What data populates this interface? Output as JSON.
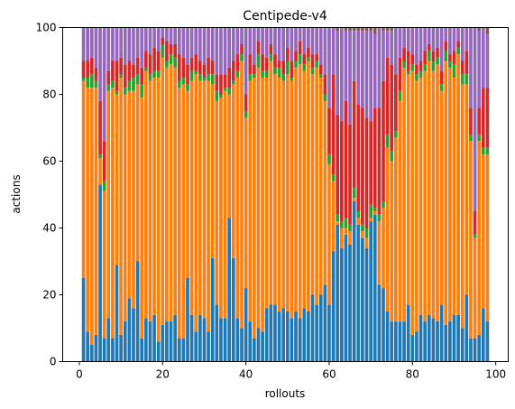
{
  "chart_data": {
    "type": "bar",
    "stacked": true,
    "title": "Centipede-v4",
    "xlabel": "rollouts",
    "ylabel": "actions",
    "xlim": [
      -4,
      103
    ],
    "ylim": [
      0,
      100
    ],
    "xticks": [
      0,
      20,
      40,
      60,
      80,
      100
    ],
    "yticks": [
      0,
      20,
      40,
      60,
      80,
      100
    ],
    "grid": false,
    "x": [
      1,
      2,
      3,
      4,
      5,
      6,
      7,
      8,
      9,
      10,
      11,
      12,
      13,
      14,
      15,
      16,
      17,
      18,
      19,
      20,
      21,
      22,
      23,
      24,
      25,
      26,
      27,
      28,
      29,
      30,
      31,
      32,
      33,
      34,
      35,
      36,
      37,
      38,
      39,
      40,
      41,
      42,
      43,
      44,
      45,
      46,
      47,
      48,
      49,
      50,
      51,
      52,
      53,
      54,
      55,
      56,
      57,
      58,
      59,
      60,
      61,
      62,
      63,
      64,
      65,
      66,
      67,
      68,
      69,
      70,
      71,
      72,
      73,
      74,
      75,
      76,
      77,
      78,
      79,
      80,
      81,
      82,
      83,
      84,
      85,
      86,
      87,
      88,
      89,
      90,
      91,
      92,
      93,
      94,
      95,
      96,
      97,
      98
    ],
    "series": [
      {
        "color": "#1f77b4",
        "values": [
          25,
          9,
          5,
          8,
          53,
          7,
          13,
          7,
          29,
          8,
          12,
          19,
          16,
          30,
          7,
          13,
          12,
          14,
          6,
          11,
          12,
          12,
          14,
          7,
          7,
          25,
          14,
          9,
          14,
          13,
          9,
          31,
          17,
          13,
          13,
          43,
          31,
          13,
          10,
          22,
          12,
          7,
          10,
          9,
          16,
          17,
          17,
          15,
          16,
          15,
          13,
          15,
          13,
          16,
          15,
          20,
          17,
          20,
          23,
          17,
          33,
          41,
          34,
          38,
          35,
          48,
          41,
          37,
          34,
          42,
          44,
          23,
          22,
          15,
          12,
          12,
          12,
          12,
          17,
          8,
          9,
          14,
          12,
          14,
          13,
          12,
          17,
          11,
          12,
          14,
          14,
          10,
          20,
          7,
          7,
          8,
          16,
          12
        ]
      },
      {
        "color": "#ff7f0e",
        "values": [
          59,
          73,
          77,
          74,
          8,
          44,
          68,
          75,
          51,
          77,
          68,
          62,
          65,
          53,
          72,
          74,
          72,
          71,
          79,
          80,
          76,
          77,
          74,
          75,
          76,
          56,
          70,
          77,
          70,
          71,
          75,
          52,
          61,
          66,
          68,
          37,
          52,
          72,
          80,
          51,
          72,
          78,
          78,
          76,
          69,
          73,
          69,
          70,
          68,
          71,
          71,
          73,
          76,
          71,
          75,
          66,
          71,
          65,
          55,
          42,
          21,
          1,
          6,
          2,
          4,
          1,
          2,
          2,
          3,
          1,
          1,
          19,
          24,
          49,
          48,
          55,
          66,
          76,
          69,
          79,
          75,
          71,
          75,
          76,
          74,
          77,
          64,
          79,
          76,
          71,
          78,
          73,
          63,
          59,
          30,
          58,
          46,
          50
        ]
      },
      {
        "color": "#2ca02c",
        "values": [
          1,
          3,
          4,
          2,
          1,
          3,
          2,
          2,
          1,
          1,
          2,
          3,
          4,
          3,
          4,
          1,
          2,
          2,
          2,
          4,
          2,
          3,
          3,
          2,
          2,
          2,
          3,
          1,
          2,
          1,
          2,
          3,
          3,
          1,
          1,
          2,
          1,
          2,
          2,
          2,
          2,
          1,
          4,
          2,
          2,
          2,
          2,
          3,
          2,
          4,
          1,
          2,
          3,
          2,
          1,
          2,
          2,
          1,
          2,
          3,
          2,
          2,
          2,
          3,
          2,
          3,
          2,
          2,
          3,
          4,
          1,
          2,
          2,
          4,
          3,
          2,
          3,
          2,
          1,
          2,
          2,
          2,
          2,
          3,
          3,
          2,
          2,
          3,
          2,
          4,
          2,
          3,
          3,
          2,
          1,
          2,
          2,
          2
        ]
      },
      {
        "color": "#d62728",
        "values": [
          5,
          5,
          5,
          4,
          16,
          12,
          4,
          6,
          9,
          5,
          7,
          6,
          4,
          5,
          5,
          5,
          6,
          7,
          6,
          2,
          6,
          3,
          4,
          8,
          6,
          6,
          4,
          5,
          4,
          4,
          5,
          4,
          5,
          6,
          4,
          6,
          6,
          5,
          3,
          5,
          6,
          3,
          4,
          5,
          4,
          3,
          4,
          2,
          4,
          4,
          5,
          3,
          4,
          3,
          3,
          4,
          2,
          3,
          6,
          14,
          30,
          30,
          30,
          35,
          30,
          32,
          32,
          35,
          33,
          25,
          30,
          32,
          36,
          23,
          26,
          17,
          10,
          4,
          6,
          3,
          3,
          3,
          4,
          2,
          3,
          3,
          4,
          3,
          2,
          4,
          2,
          4,
          7,
          8,
          7,
          8,
          18,
          18
        ]
      },
      {
        "color": "#9467bd",
        "values": [
          10,
          10,
          9,
          12,
          22,
          34,
          13,
          10,
          10,
          9,
          11,
          10,
          11,
          9,
          12,
          7,
          8,
          6,
          7,
          3,
          4,
          5,
          5,
          8,
          9,
          11,
          9,
          8,
          10,
          11,
          9,
          10,
          14,
          14,
          14,
          12,
          10,
          8,
          5,
          20,
          8,
          11,
          4,
          8,
          9,
          5,
          8,
          10,
          10,
          6,
          10,
          7,
          4,
          8,
          6,
          8,
          8,
          11,
          14,
          24,
          14,
          25,
          28,
          21,
          28,
          15,
          22,
          23,
          26,
          27,
          22,
          24,
          15,
          8,
          10,
          14,
          9,
          6,
          7,
          8,
          11,
          10,
          7,
          5,
          7,
          6,
          13,
          4,
          8,
          7,
          4,
          10,
          7,
          24,
          55,
          23,
          18,
          16
        ]
      },
      {
        "color": "#8c564b",
        "values": [
          0,
          0,
          0,
          0,
          0,
          0,
          0,
          0,
          0,
          0,
          0,
          0,
          0,
          0,
          0,
          0,
          0,
          0,
          0,
          0,
          0,
          0,
          0,
          0,
          0,
          0,
          0,
          0,
          0,
          0,
          0,
          0,
          0,
          0,
          0,
          0,
          0,
          0,
          0,
          0,
          0,
          0,
          0,
          0,
          0,
          0,
          0,
          0,
          0,
          0,
          0,
          0,
          0,
          0,
          0,
          0,
          0,
          0,
          0,
          0,
          0,
          1,
          0,
          1,
          1,
          1,
          1,
          1,
          1,
          1,
          2,
          0,
          1,
          1,
          1,
          0,
          0,
          0,
          0,
          0,
          0,
          0,
          0,
          0,
          0,
          0,
          0,
          0,
          0,
          0,
          0,
          0,
          0,
          0,
          0,
          1,
          0,
          2
        ]
      }
    ]
  }
}
